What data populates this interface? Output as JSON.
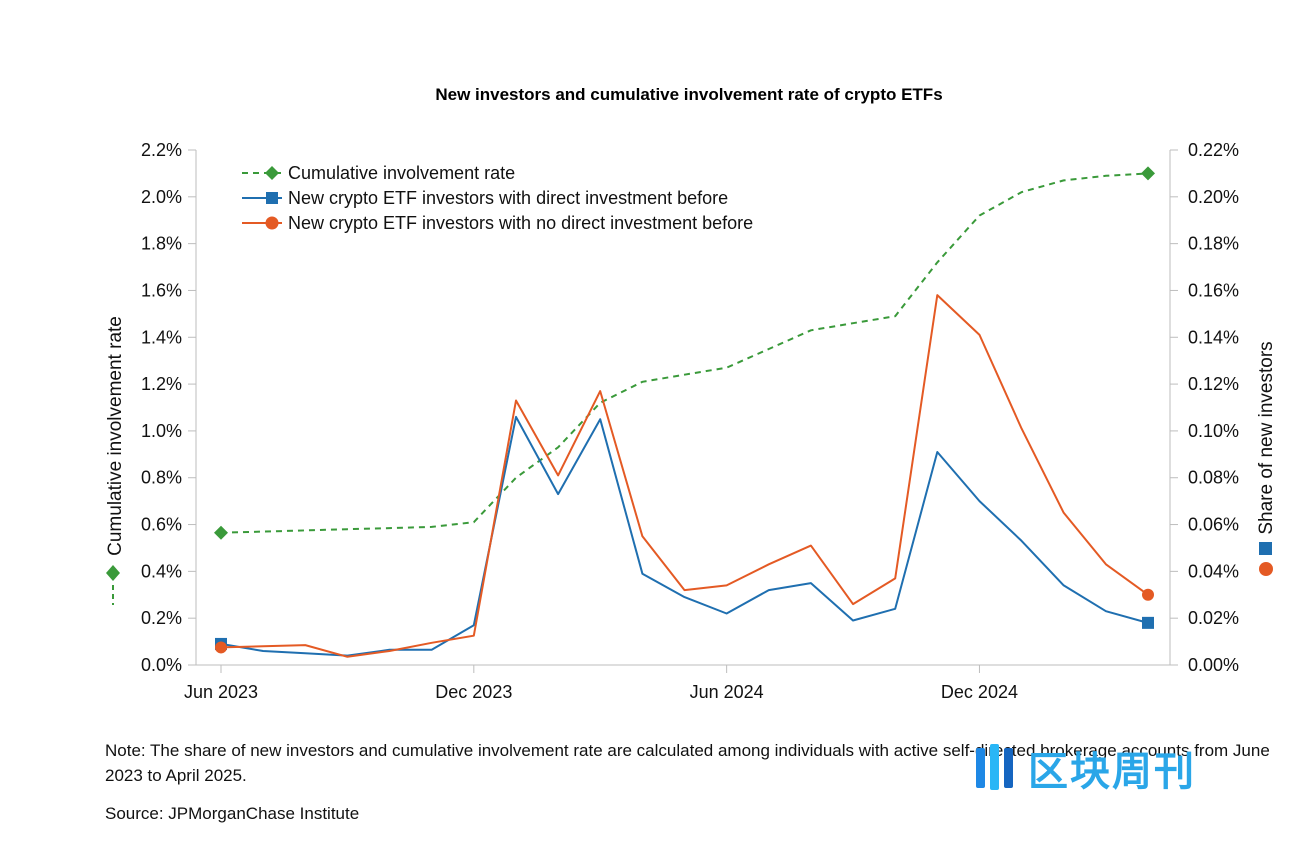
{
  "chart_data": {
    "type": "line",
    "title": "New investors and cumulative involvement rate of crypto ETFs",
    "x_labels": [
      "Jun 2023",
      "Dec 2023",
      "Jun 2024",
      "Dec 2024"
    ],
    "x_label_indices": [
      0,
      6,
      12,
      18
    ],
    "x_count": 23,
    "y_left": {
      "label": "Cumulative involvement rate",
      "range": [
        0,
        2.2
      ],
      "ticks": [
        "0.0%",
        "0.2%",
        "0.4%",
        "0.6%",
        "0.8%",
        "1.0%",
        "1.2%",
        "1.4%",
        "1.6%",
        "1.8%",
        "2.0%",
        "2.2%"
      ]
    },
    "y_right": {
      "label": "Share of new investors",
      "range": [
        0,
        0.22
      ],
      "ticks": [
        "0.00%",
        "0.02%",
        "0.04%",
        "0.06%",
        "0.08%",
        "0.10%",
        "0.12%",
        "0.14%",
        "0.16%",
        "0.18%",
        "0.20%",
        "0.22%"
      ]
    },
    "series": [
      {
        "name": "Cumulative involvement rate",
        "axis": "left",
        "color": "#3a9a3a",
        "dash": true,
        "marker": "diamond",
        "values": [
          0.565,
          0.57,
          0.575,
          0.58,
          0.585,
          0.59,
          0.61,
          0.8,
          0.93,
          1.12,
          1.21,
          1.24,
          1.27,
          1.35,
          1.43,
          1.46,
          1.49,
          1.72,
          1.92,
          2.02,
          2.07,
          2.09,
          2.1
        ]
      },
      {
        "name": "New crypto ETF investors with direct investment before",
        "axis": "right",
        "color": "#1f6fb0",
        "dash": false,
        "marker": "square",
        "values": [
          0.009,
          0.006,
          0.005,
          0.004,
          0.0065,
          0.0065,
          0.017,
          0.106,
          0.073,
          0.105,
          0.039,
          0.029,
          0.022,
          0.032,
          0.035,
          0.019,
          0.024,
          0.091,
          0.07,
          0.053,
          0.034,
          0.023,
          0.018
        ]
      },
      {
        "name": "New crypto ETF investors with no direct investment before",
        "axis": "right",
        "color": "#e45a24",
        "dash": false,
        "marker": "circle",
        "values": [
          0.0075,
          0.008,
          0.0085,
          0.0035,
          0.006,
          0.0095,
          0.0125,
          0.113,
          0.081,
          0.117,
          0.055,
          0.032,
          0.034,
          0.043,
          0.051,
          0.026,
          0.037,
          0.158,
          0.141,
          0.101,
          0.065,
          0.043,
          0.03
        ]
      }
    ],
    "legend_position": "top-left"
  },
  "note": "Note: The share of new investors and cumulative involvement rate are calculated among individuals with active self-directed brokerage accounts from June 2023 to April 2025.",
  "source": "Source: JPMorganChase Institute",
  "watermark": "区块周刊"
}
